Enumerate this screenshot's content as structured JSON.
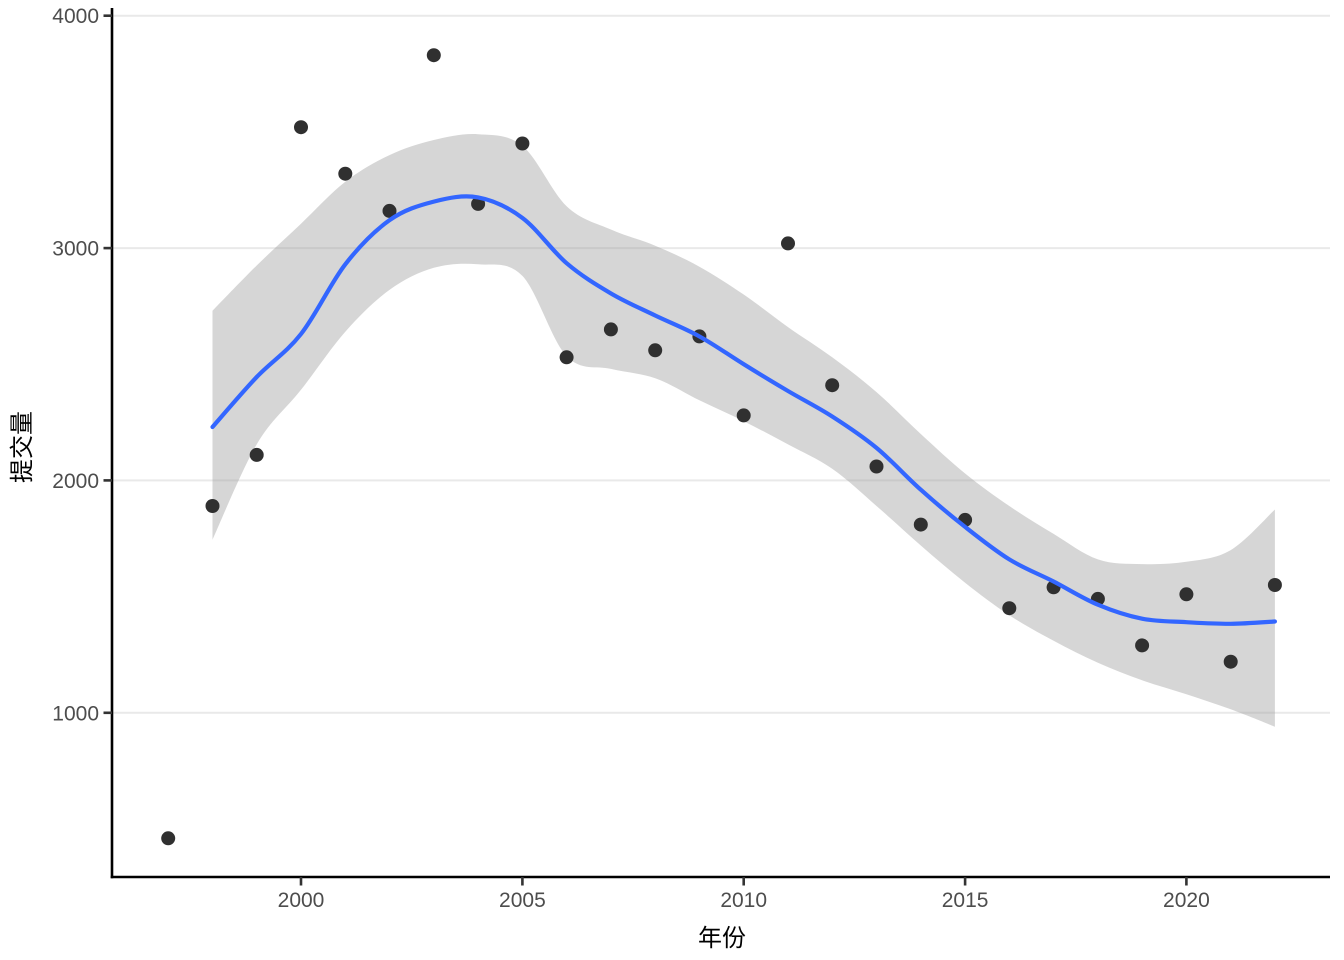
{
  "chart_data": {
    "type": "scatter",
    "title": "",
    "xlabel": "年份",
    "ylabel": "提交量",
    "xlim": [
      1995.7,
      2023.3
    ],
    "ylim": [
      290,
      4025
    ],
    "grid": "horizontal-only",
    "legend": "none",
    "x_ticks": [
      {
        "label": "2000",
        "year": 2000
      },
      {
        "label": "2005",
        "year": 2005
      },
      {
        "label": "2010",
        "year": 2010
      },
      {
        "label": "2015",
        "year": 2015
      },
      {
        "label": "2020",
        "year": 2020
      }
    ],
    "y_ticks": [
      {
        "label": "1000",
        "value": 1000
      },
      {
        "label": "2000",
        "value": 2000
      },
      {
        "label": "3000",
        "value": 3000
      },
      {
        "label": "4000",
        "value": 4000
      }
    ],
    "series": [
      {
        "name": "observations",
        "type": "scatter",
        "x": [
          1997,
          1998,
          1999,
          2000,
          2001,
          2002,
          2003,
          2004,
          2005,
          2006,
          2007,
          2008,
          2009,
          2010,
          2011,
          2012,
          2013,
          2014,
          2015,
          2016,
          2017,
          2018,
          2019,
          2020,
          2021,
          2022
        ],
        "y": [
          460,
          1890,
          2110,
          3520,
          3320,
          3160,
          3830,
          3190,
          3450,
          2530,
          2650,
          2560,
          2620,
          2280,
          3020,
          2410,
          2060,
          1810,
          1830,
          1450,
          1540,
          1490,
          1290,
          1510,
          1220,
          1550
        ]
      },
      {
        "name": "loess_smooth",
        "type": "line",
        "x": [
          1998,
          1999,
          2000,
          2001,
          2002,
          2003,
          2004,
          2005,
          2006,
          2007,
          2008,
          2009,
          2010,
          2011,
          2012,
          2013,
          2014,
          2015,
          2016,
          2017,
          2018,
          2019,
          2020,
          2021,
          2022
        ],
        "y": [
          2230,
          2445,
          2630,
          2930,
          3120,
          3200,
          3218,
          3130,
          2935,
          2805,
          2710,
          2620,
          2500,
          2385,
          2275,
          2140,
          1960,
          1800,
          1660,
          1565,
          1465,
          1405,
          1390,
          1383,
          1393
        ]
      },
      {
        "name": "confidence_band",
        "type": "area",
        "x": [
          1998,
          1999,
          2000,
          2001,
          2002,
          2003,
          2004,
          2005,
          2006,
          2007,
          2008,
          2009,
          2010,
          2011,
          2012,
          2013,
          2014,
          2015,
          2016,
          2017,
          2018,
          2019,
          2020,
          2021,
          2022
        ],
        "lower": [
          1745,
          2155,
          2390,
          2640,
          2820,
          2915,
          2930,
          2880,
          2535,
          2480,
          2440,
          2345,
          2255,
          2155,
          2050,
          1890,
          1720,
          1560,
          1420,
          1310,
          1215,
          1140,
          1080,
          1015,
          940
        ],
        "upper": [
          2730,
          2925,
          3105,
          3285,
          3400,
          3465,
          3490,
          3440,
          3180,
          3080,
          3010,
          2920,
          2800,
          2660,
          2530,
          2380,
          2200,
          2030,
          1890,
          1770,
          1660,
          1640,
          1650,
          1700,
          1875
        ]
      }
    ],
    "colors": {
      "point": "#303030",
      "line": "#3366FF",
      "band": "#999999",
      "band_opacity": 0.4,
      "gridline": "#E9E9E9",
      "axis_line": "#000000",
      "tick_mark": "#333333",
      "tick_label": "#4D4D4D",
      "axis_title": "#000000",
      "background": "#FFFFFF"
    }
  }
}
